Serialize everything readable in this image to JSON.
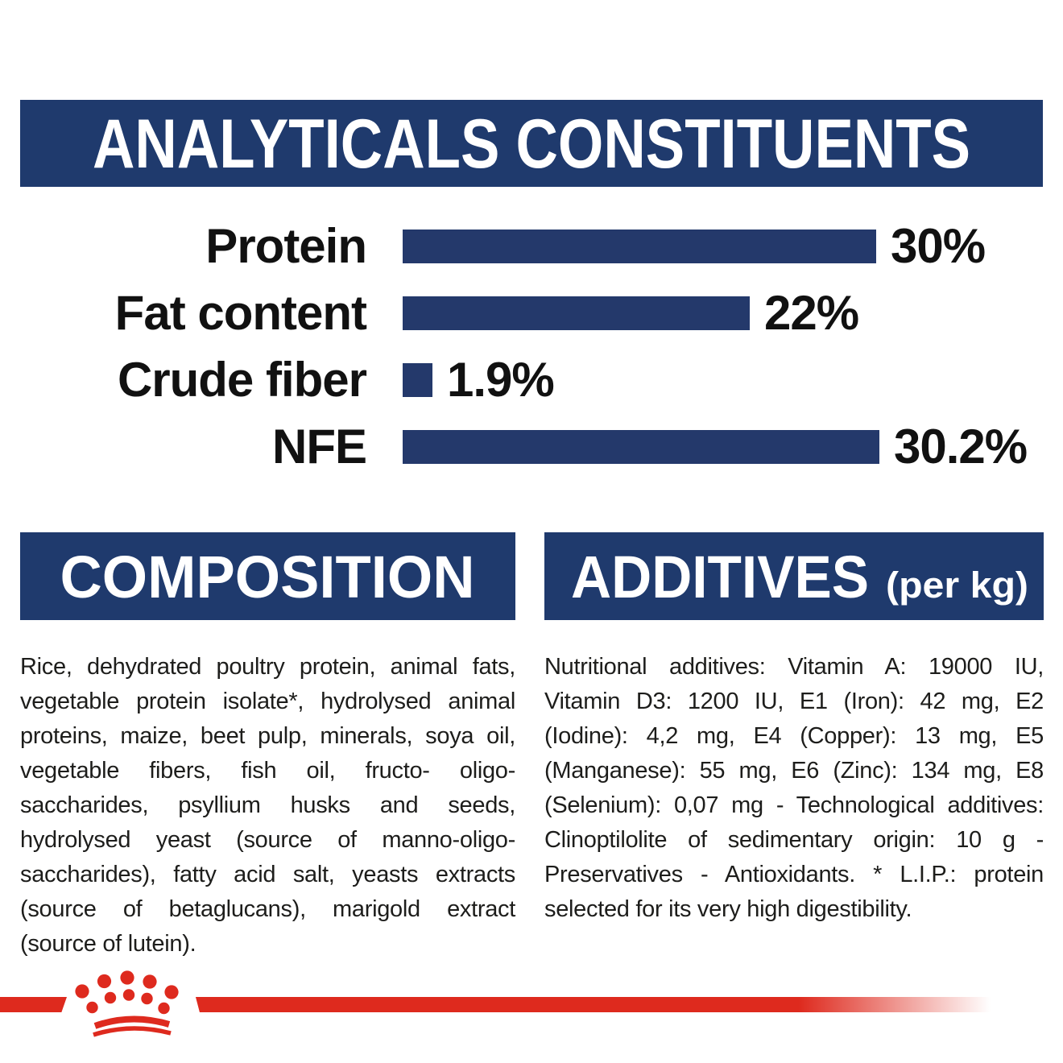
{
  "colors": {
    "navy": "#1f3a6d",
    "bar_navy": "#24396b",
    "red": "#de2a1e",
    "text": "#1d1d1b",
    "white": "#ffffff"
  },
  "analyticals": {
    "title": "ANALYTICALS CONSTITUENTS"
  },
  "chart_data": {
    "type": "bar",
    "orientation": "horizontal",
    "title": "ANALYTICALS CONSTITUENTS",
    "categories": [
      "Protein",
      "Fat content",
      "Crude fiber",
      "NFE"
    ],
    "values": [
      30,
      22,
      1.9,
      30.2
    ],
    "value_labels": [
      "30%",
      "22%",
      "1.9%",
      "30.2%"
    ],
    "unit": "%",
    "xlim": [
      0,
      30.2
    ],
    "grid": false,
    "legend": false,
    "bar_color": "#24396b",
    "label_color": "#111111"
  },
  "composition": {
    "title": "COMPOSITION",
    "body": "Rice, dehydrated poultry protein, animal fats, vegetable protein isolate*, hydrolysed animal proteins, maize, beet pulp, minerals, soya oil, vegetable fibers, fish oil, fructo- oligo-saccharides, psyllium husks and seeds, hydrolysed yeast (source of manno-oligo-saccharides), fatty acid salt, yeasts extracts (source of betaglucans), marigold extract (source of lutein)."
  },
  "additives": {
    "title": "ADDITIVES",
    "suffix": "(per kg)",
    "body": "Nutritional additives: Vitamin A: 19000 IU, Vitamin D3: 1200 IU, E1 (Iron): 42 mg, E2 (Iodine): 4,2 mg, E4 (Copper): 13 mg, E5 (Manganese): 55 mg, E6 (Zinc): 134 mg, E8 (Selenium): 0,07 mg - Technological additives: Clinoptilolite of sedimentary origin: 10 g - Preservatives - Antioxidants. * L.I.P.: protein selected for its very high digestibility."
  },
  "footer": {
    "logo": "royal-canin-crown"
  }
}
